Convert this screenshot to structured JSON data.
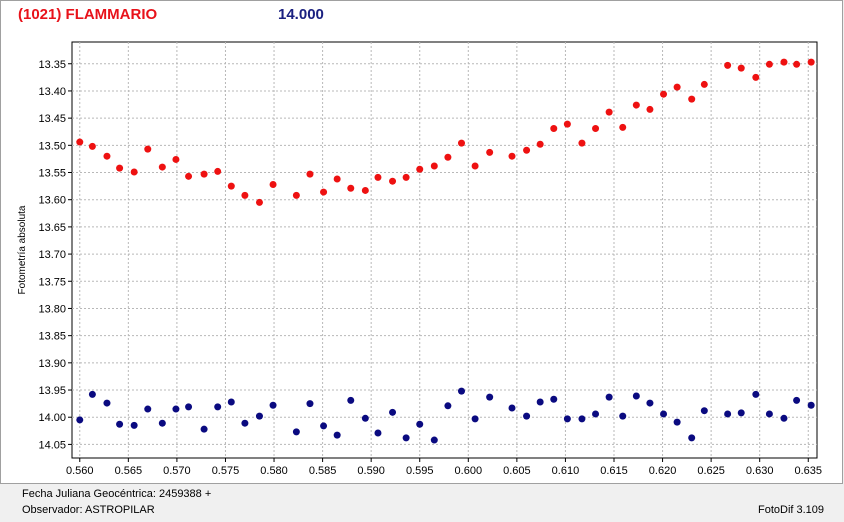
{
  "chart_data": {
    "type": "scatter",
    "title": "(1021) FLAMMARIO",
    "subtitle": "14.000",
    "y_label": "Fotometría absoluta",
    "title_color": "#e8121a",
    "subtitle_color": "#1a2080",
    "grid": true,
    "x": [
      0.56,
      0.5613,
      0.5628,
      0.5641,
      0.5656,
      0.567,
      0.5685,
      0.5699,
      0.5712,
      0.5728,
      0.5742,
      0.5756,
      0.577,
      0.5785,
      0.5799,
      0.5823,
      0.5837,
      0.5851,
      0.5865,
      0.5879,
      0.5894,
      0.5907,
      0.5922,
      0.5936,
      0.595,
      0.5965,
      0.5979,
      0.5993,
      0.6007,
      0.6022,
      0.6045,
      0.606,
      0.6074,
      0.6088,
      0.6102,
      0.6117,
      0.6131,
      0.6145,
      0.6159,
      0.6173,
      0.6187,
      0.6201,
      0.6215,
      0.623,
      0.6243,
      0.6267,
      0.6281,
      0.6296,
      0.631,
      0.6325,
      0.6338,
      0.6353
    ],
    "series": [
      {
        "color": "#ee1111",
        "values": [
          13.494,
          13.502,
          13.52,
          13.542,
          13.549,
          13.507,
          13.54,
          13.526,
          13.557,
          13.553,
          13.548,
          13.575,
          13.592,
          13.605,
          13.572,
          13.592,
          13.553,
          13.586,
          13.562,
          13.579,
          13.583,
          13.559,
          13.566,
          13.559,
          13.544,
          13.538,
          13.522,
          13.496,
          13.538,
          13.513,
          13.52,
          13.509,
          13.498,
          13.469,
          13.461,
          13.496,
          13.469,
          13.439,
          13.467,
          13.426,
          13.434,
          13.406,
          13.393,
          13.415,
          13.388,
          13.353,
          13.358,
          13.375,
          13.351,
          13.347,
          13.351,
          13.347
        ]
      },
      {
        "color": "#0a0a80",
        "values": [
          14.005,
          13.958,
          13.974,
          14.013,
          14.015,
          13.985,
          14.011,
          13.985,
          13.981,
          14.022,
          13.981,
          13.972,
          14.011,
          13.998,
          13.978,
          14.027,
          13.975,
          14.016,
          14.033,
          13.969,
          14.002,
          14.029,
          13.991,
          14.038,
          14.013,
          14.042,
          13.979,
          13.952,
          14.003,
          13.963,
          13.983,
          13.998,
          13.972,
          13.967,
          14.003,
          14.003,
          13.994,
          13.963,
          13.998,
          13.961,
          13.974,
          13.994,
          14.009,
          14.038,
          13.988,
          13.994,
          13.992,
          13.958,
          13.994,
          14.002,
          13.969,
          13.978
        ]
      }
    ],
    "xlim": [
      0.5592,
      0.6359
    ],
    "ylim": [
      14.075,
      13.31
    ],
    "xticks": [
      {
        "value": 0.56,
        "label": "0.560"
      },
      0.565,
      {
        "value": 0.57,
        "label": "0.570"
      },
      0.575,
      {
        "value": 0.58,
        "label": "0.580"
      },
      0.585,
      {
        "value": 0.59,
        "label": "0.590"
      },
      0.595,
      {
        "value": 0.6,
        "label": "0.600"
      },
      0.605,
      {
        "value": 0.61,
        "label": "0.610"
      },
      0.615,
      {
        "value": 0.62,
        "label": "0.620"
      },
      0.625,
      {
        "value": 0.63,
        "label": "0.630"
      },
      0.635
    ],
    "yticks": [
      13.35,
      {
        "value": 13.4,
        "label": "13.40"
      },
      13.45,
      {
        "value": 13.5,
        "label": "13.50"
      },
      13.55,
      {
        "value": 13.6,
        "label": "13.60"
      },
      13.65,
      {
        "value": 13.7,
        "label": "13.70"
      },
      13.75,
      {
        "value": 13.8,
        "label": "13.80"
      },
      13.85,
      {
        "value": 13.9,
        "label": "13.90"
      },
      13.95,
      {
        "value": 14.0,
        "label": "14.00"
      },
      14.05
    ]
  },
  "footer": {
    "date": "Fecha Juliana Geocéntrica: 2459388 +",
    "observer": "Observador: ASTROPILAR",
    "software": "FotoDif 3.109"
  }
}
